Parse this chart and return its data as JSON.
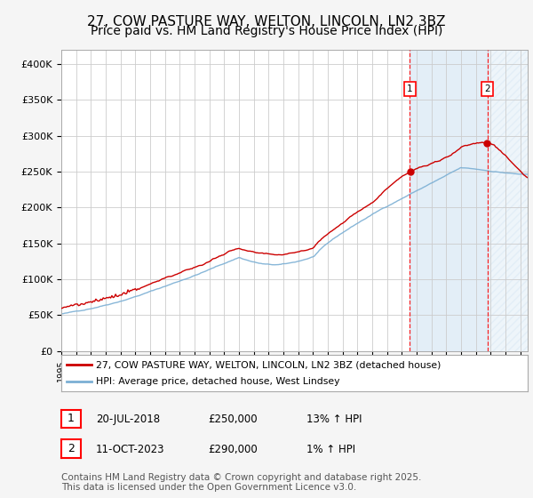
{
  "title_line1": "27, COW PASTURE WAY, WELTON, LINCOLN, LN2 3BZ",
  "title_line2": "Price paid vs. HM Land Registry's House Price Index (HPI)",
  "ylim": [
    0,
    420000
  ],
  "yticks": [
    0,
    50000,
    100000,
    150000,
    200000,
    250000,
    300000,
    350000,
    400000
  ],
  "ytick_labels": [
    "£0",
    "£50K",
    "£100K",
    "£150K",
    "£200K",
    "£250K",
    "£300K",
    "£350K",
    "£400K"
  ],
  "xlim_start": 1995.0,
  "xlim_end": 2026.5,
  "red_line_color": "#cc0000",
  "blue_line_color": "#7bafd4",
  "grid_color": "#cccccc",
  "bg_color": "#f5f5f5",
  "plot_bg": "#ffffff",
  "shade_between_color": "#c8dff0",
  "hatch_color": "#c8dff0",
  "legend_label_red": "27, COW PASTURE WAY, WELTON, LINCOLN, LN2 3BZ (detached house)",
  "legend_label_blue": "HPI: Average price, detached house, West Lindsey",
  "transaction1_label": "1",
  "transaction1_date": "20-JUL-2018",
  "transaction1_price": "£250,000",
  "transaction1_hpi": "13% ↑ HPI",
  "transaction1_x": 2018.55,
  "transaction1_y": 250000,
  "transaction2_label": "2",
  "transaction2_date": "11-OCT-2023",
  "transaction2_price": "£290,000",
  "transaction2_hpi": "1% ↑ HPI",
  "transaction2_x": 2023.78,
  "transaction2_y": 290000,
  "footer_text": "Contains HM Land Registry data © Crown copyright and database right 2025.\nThis data is licensed under the Open Government Licence v3.0.",
  "note_fontsize": 7.5,
  "title_fontsize1": 11,
  "title_fontsize2": 10
}
